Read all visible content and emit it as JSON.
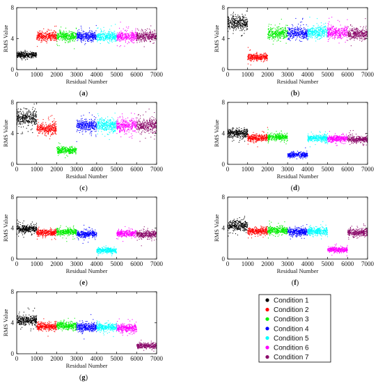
{
  "legend": {
    "entries": [
      {
        "name": "Condition 1",
        "color": "#000000"
      },
      {
        "name": "Condition 2",
        "color": "#ff0000"
      },
      {
        "name": "Condition 3",
        "color": "#00ee00"
      },
      {
        "name": "Condition 4",
        "color": "#0000ff"
      },
      {
        "name": "Condition 5",
        "color": "#00ffff"
      },
      {
        "name": "Condition 6",
        "color": "#ff00ff"
      },
      {
        "name": "Condition 7",
        "color": "#8b0a6a"
      }
    ]
  },
  "chart_data": [
    {
      "type": "scatter",
      "panel_label": "a",
      "xlabel": "Residual Number",
      "ylabel": "RMS Value",
      "xlim": [
        0,
        7000
      ],
      "ylim": [
        0,
        8
      ],
      "xticks": [
        0,
        1000,
        2000,
        3000,
        4000,
        5000,
        6000,
        7000
      ],
      "yticks": [
        0,
        4,
        8
      ],
      "damaged_condition": "Condition 1",
      "series": [
        {
          "condition": "Condition 1",
          "x_range": [
            0,
            1000
          ],
          "center": 1.9,
          "spread": 0.35
        },
        {
          "condition": "Condition 2",
          "x_range": [
            1000,
            2000
          ],
          "center": 4.3,
          "spread": 0.55
        },
        {
          "condition": "Condition 3",
          "x_range": [
            2000,
            3000
          ],
          "center": 4.3,
          "spread": 0.55
        },
        {
          "condition": "Condition 4",
          "x_range": [
            3000,
            4000
          ],
          "center": 4.3,
          "spread": 0.55
        },
        {
          "condition": "Condition 5",
          "x_range": [
            4000,
            5000
          ],
          "center": 4.3,
          "spread": 0.55
        },
        {
          "condition": "Condition 6",
          "x_range": [
            5000,
            6000
          ],
          "center": 4.3,
          "spread": 0.55
        },
        {
          "condition": "Condition 7",
          "x_range": [
            6000,
            7000
          ],
          "center": 4.3,
          "spread": 0.55
        }
      ]
    },
    {
      "type": "scatter",
      "panel_label": "b",
      "xlabel": "Residual Number",
      "ylabel": "RMS Value",
      "xlim": [
        0,
        7000
      ],
      "ylim": [
        0,
        8
      ],
      "xticks": [
        0,
        1000,
        2000,
        3000,
        4000,
        5000,
        6000,
        7000
      ],
      "yticks": [
        0,
        4,
        8
      ],
      "damaged_condition": "Condition 2",
      "series": [
        {
          "condition": "Condition 1",
          "x_range": [
            0,
            1000
          ],
          "center": 6.0,
          "spread": 0.85
        },
        {
          "condition": "Condition 2",
          "x_range": [
            1000,
            2000
          ],
          "center": 1.6,
          "spread": 0.4
        },
        {
          "condition": "Condition 3",
          "x_range": [
            2000,
            3000
          ],
          "center": 4.7,
          "spread": 0.7
        },
        {
          "condition": "Condition 4",
          "x_range": [
            3000,
            4000
          ],
          "center": 4.7,
          "spread": 0.7
        },
        {
          "condition": "Condition 5",
          "x_range": [
            4000,
            5000
          ],
          "center": 4.8,
          "spread": 0.7
        },
        {
          "condition": "Condition 6",
          "x_range": [
            5000,
            6000
          ],
          "center": 4.8,
          "spread": 0.7
        },
        {
          "condition": "Condition 7",
          "x_range": [
            6000,
            7000
          ],
          "center": 4.6,
          "spread": 0.7
        }
      ]
    },
    {
      "type": "scatter",
      "panel_label": "c",
      "xlabel": "Residual Number",
      "ylabel": "RMS Value",
      "xlim": [
        0,
        7000
      ],
      "ylim": [
        0,
        8
      ],
      "xticks": [
        0,
        1000,
        2000,
        3000,
        4000,
        5000,
        6000,
        7000
      ],
      "yticks": [
        0,
        4,
        8
      ],
      "damaged_condition": "Condition 3",
      "series": [
        {
          "condition": "Condition 1",
          "x_range": [
            0,
            1000
          ],
          "center": 6.0,
          "spread": 0.85
        },
        {
          "condition": "Condition 2",
          "x_range": [
            1000,
            2000
          ],
          "center": 4.6,
          "spread": 0.65
        },
        {
          "condition": "Condition 3",
          "x_range": [
            2000,
            3000
          ],
          "center": 1.8,
          "spread": 0.4
        },
        {
          "condition": "Condition 4",
          "x_range": [
            3000,
            4000
          ],
          "center": 5.0,
          "spread": 0.75
        },
        {
          "condition": "Condition 5",
          "x_range": [
            4000,
            5000
          ],
          "center": 5.1,
          "spread": 0.75
        },
        {
          "condition": "Condition 6",
          "x_range": [
            5000,
            6000
          ],
          "center": 5.0,
          "spread": 0.75
        },
        {
          "condition": "Condition 7",
          "x_range": [
            6000,
            7000
          ],
          "center": 5.0,
          "spread": 0.75
        }
      ]
    },
    {
      "type": "scatter",
      "panel_label": "d",
      "xlabel": "Residual Number",
      "ylabel": "RMS Value",
      "xlim": [
        0,
        7000
      ],
      "ylim": [
        0,
        8
      ],
      "xticks": [
        0,
        1000,
        2000,
        3000,
        4000,
        5000,
        6000,
        7000
      ],
      "yticks": [
        0,
        4,
        8
      ],
      "damaged_condition": "Condition 4",
      "series": [
        {
          "condition": "Condition 1",
          "x_range": [
            0,
            1000
          ],
          "center": 4.0,
          "spread": 0.5
        },
        {
          "condition": "Condition 2",
          "x_range": [
            1000,
            2000
          ],
          "center": 3.4,
          "spread": 0.4
        },
        {
          "condition": "Condition 3",
          "x_range": [
            2000,
            3000
          ],
          "center": 3.5,
          "spread": 0.4
        },
        {
          "condition": "Condition 4",
          "x_range": [
            3000,
            4000
          ],
          "center": 1.2,
          "spread": 0.3
        },
        {
          "condition": "Condition 5",
          "x_range": [
            4000,
            5000
          ],
          "center": 3.4,
          "spread": 0.4
        },
        {
          "condition": "Condition 6",
          "x_range": [
            5000,
            6000
          ],
          "center": 3.3,
          "spread": 0.4
        },
        {
          "condition": "Condition 7",
          "x_range": [
            6000,
            7000
          ],
          "center": 3.2,
          "spread": 0.4
        }
      ]
    },
    {
      "type": "scatter",
      "panel_label": "e",
      "xlabel": "Residual Number",
      "ylabel": "RMS Value",
      "xlim": [
        0,
        7000
      ],
      "ylim": [
        0,
        8
      ],
      "xticks": [
        0,
        1000,
        2000,
        3000,
        4000,
        5000,
        6000,
        7000
      ],
      "yticks": [
        0,
        4,
        8
      ],
      "damaged_condition": "Condition 5",
      "series": [
        {
          "condition": "Condition 1",
          "x_range": [
            0,
            1000
          ],
          "center": 3.9,
          "spread": 0.5
        },
        {
          "condition": "Condition 2",
          "x_range": [
            1000,
            2000
          ],
          "center": 3.4,
          "spread": 0.4
        },
        {
          "condition": "Condition 3",
          "x_range": [
            2000,
            3000
          ],
          "center": 3.5,
          "spread": 0.4
        },
        {
          "condition": "Condition 4",
          "x_range": [
            3000,
            4000
          ],
          "center": 3.2,
          "spread": 0.4
        },
        {
          "condition": "Condition 5",
          "x_range": [
            4000,
            5000
          ],
          "center": 1.1,
          "spread": 0.3
        },
        {
          "condition": "Condition 6",
          "x_range": [
            5000,
            6000
          ],
          "center": 3.3,
          "spread": 0.4
        },
        {
          "condition": "Condition 7",
          "x_range": [
            6000,
            7000
          ],
          "center": 3.2,
          "spread": 0.4
        }
      ]
    },
    {
      "type": "scatter",
      "panel_label": "f",
      "xlabel": "Residual Number",
      "ylabel": "RMS Value",
      "xlim": [
        0,
        7000
      ],
      "ylim": [
        0,
        8
      ],
      "xticks": [
        0,
        1000,
        2000,
        3000,
        4000,
        5000,
        6000,
        7000
      ],
      "yticks": [
        0,
        4,
        8
      ],
      "damaged_condition": "Condition 6",
      "series": [
        {
          "condition": "Condition 1",
          "x_range": [
            0,
            1000
          ],
          "center": 4.3,
          "spread": 0.6
        },
        {
          "condition": "Condition 2",
          "x_range": [
            1000,
            2000
          ],
          "center": 3.6,
          "spread": 0.45
        },
        {
          "condition": "Condition 3",
          "x_range": [
            2000,
            3000
          ],
          "center": 3.7,
          "spread": 0.45
        },
        {
          "condition": "Condition 4",
          "x_range": [
            3000,
            4000
          ],
          "center": 3.5,
          "spread": 0.45
        },
        {
          "condition": "Condition 5",
          "x_range": [
            4000,
            5000
          ],
          "center": 3.6,
          "spread": 0.45
        },
        {
          "condition": "Condition 6",
          "x_range": [
            5000,
            6000
          ],
          "center": 1.2,
          "spread": 0.3
        },
        {
          "condition": "Condition 7",
          "x_range": [
            6000,
            7000
          ],
          "center": 3.4,
          "spread": 0.45
        }
      ]
    },
    {
      "type": "scatter",
      "panel_label": "g",
      "xlabel": "Residual Number",
      "ylabel": "RMS Value",
      "xlim": [
        0,
        7000
      ],
      "ylim": [
        0,
        8
      ],
      "xticks": [
        0,
        1000,
        2000,
        3000,
        4000,
        5000,
        6000,
        7000
      ],
      "yticks": [
        0,
        4,
        8
      ],
      "damaged_condition": "Condition 7",
      "series": [
        {
          "condition": "Condition 1",
          "x_range": [
            0,
            1000
          ],
          "center": 4.3,
          "spread": 0.55
        },
        {
          "condition": "Condition 2",
          "x_range": [
            1000,
            2000
          ],
          "center": 3.5,
          "spread": 0.45
        },
        {
          "condition": "Condition 3",
          "x_range": [
            2000,
            3000
          ],
          "center": 3.6,
          "spread": 0.45
        },
        {
          "condition": "Condition 4",
          "x_range": [
            3000,
            4000
          ],
          "center": 3.4,
          "spread": 0.45
        },
        {
          "condition": "Condition 5",
          "x_range": [
            4000,
            5000
          ],
          "center": 3.4,
          "spread": 0.45
        },
        {
          "condition": "Condition 6",
          "x_range": [
            5000,
            6000
          ],
          "center": 3.3,
          "spread": 0.45
        },
        {
          "condition": "Condition 7",
          "x_range": [
            6000,
            7000
          ],
          "center": 1.0,
          "spread": 0.3
        }
      ]
    }
  ]
}
